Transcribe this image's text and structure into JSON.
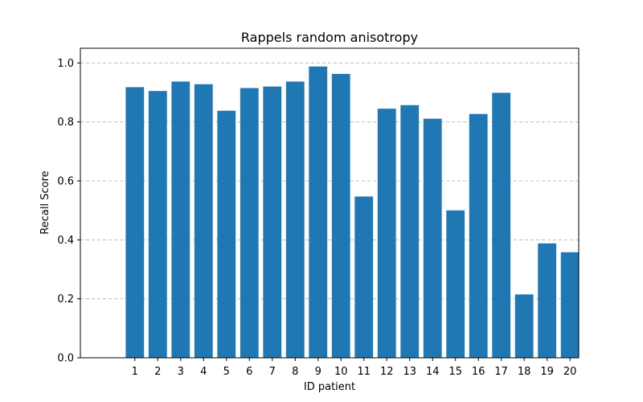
{
  "chart_data": {
    "type": "bar",
    "title": "Rappels random anisotropy",
    "xlabel": "ID patient",
    "ylabel": "Recall Score",
    "categories": [
      "1",
      "2",
      "3",
      "4",
      "5",
      "6",
      "7",
      "8",
      "9",
      "10",
      "11",
      "12",
      "13",
      "14",
      "15",
      "16",
      "17",
      "18",
      "19",
      "20"
    ],
    "values": [
      0.918,
      0.905,
      0.937,
      0.928,
      0.838,
      0.915,
      0.92,
      0.937,
      0.988,
      0.963,
      0.547,
      0.845,
      0.857,
      0.811,
      0.5,
      0.827,
      0.899,
      0.215,
      0.388,
      0.358
    ],
    "ylim": [
      0,
      1.05
    ],
    "yticks": [
      "0.0",
      "0.2",
      "0.4",
      "0.6",
      "0.8",
      "1.0"
    ],
    "grid": "y-dashed",
    "bar_color": "#1f77b4"
  }
}
